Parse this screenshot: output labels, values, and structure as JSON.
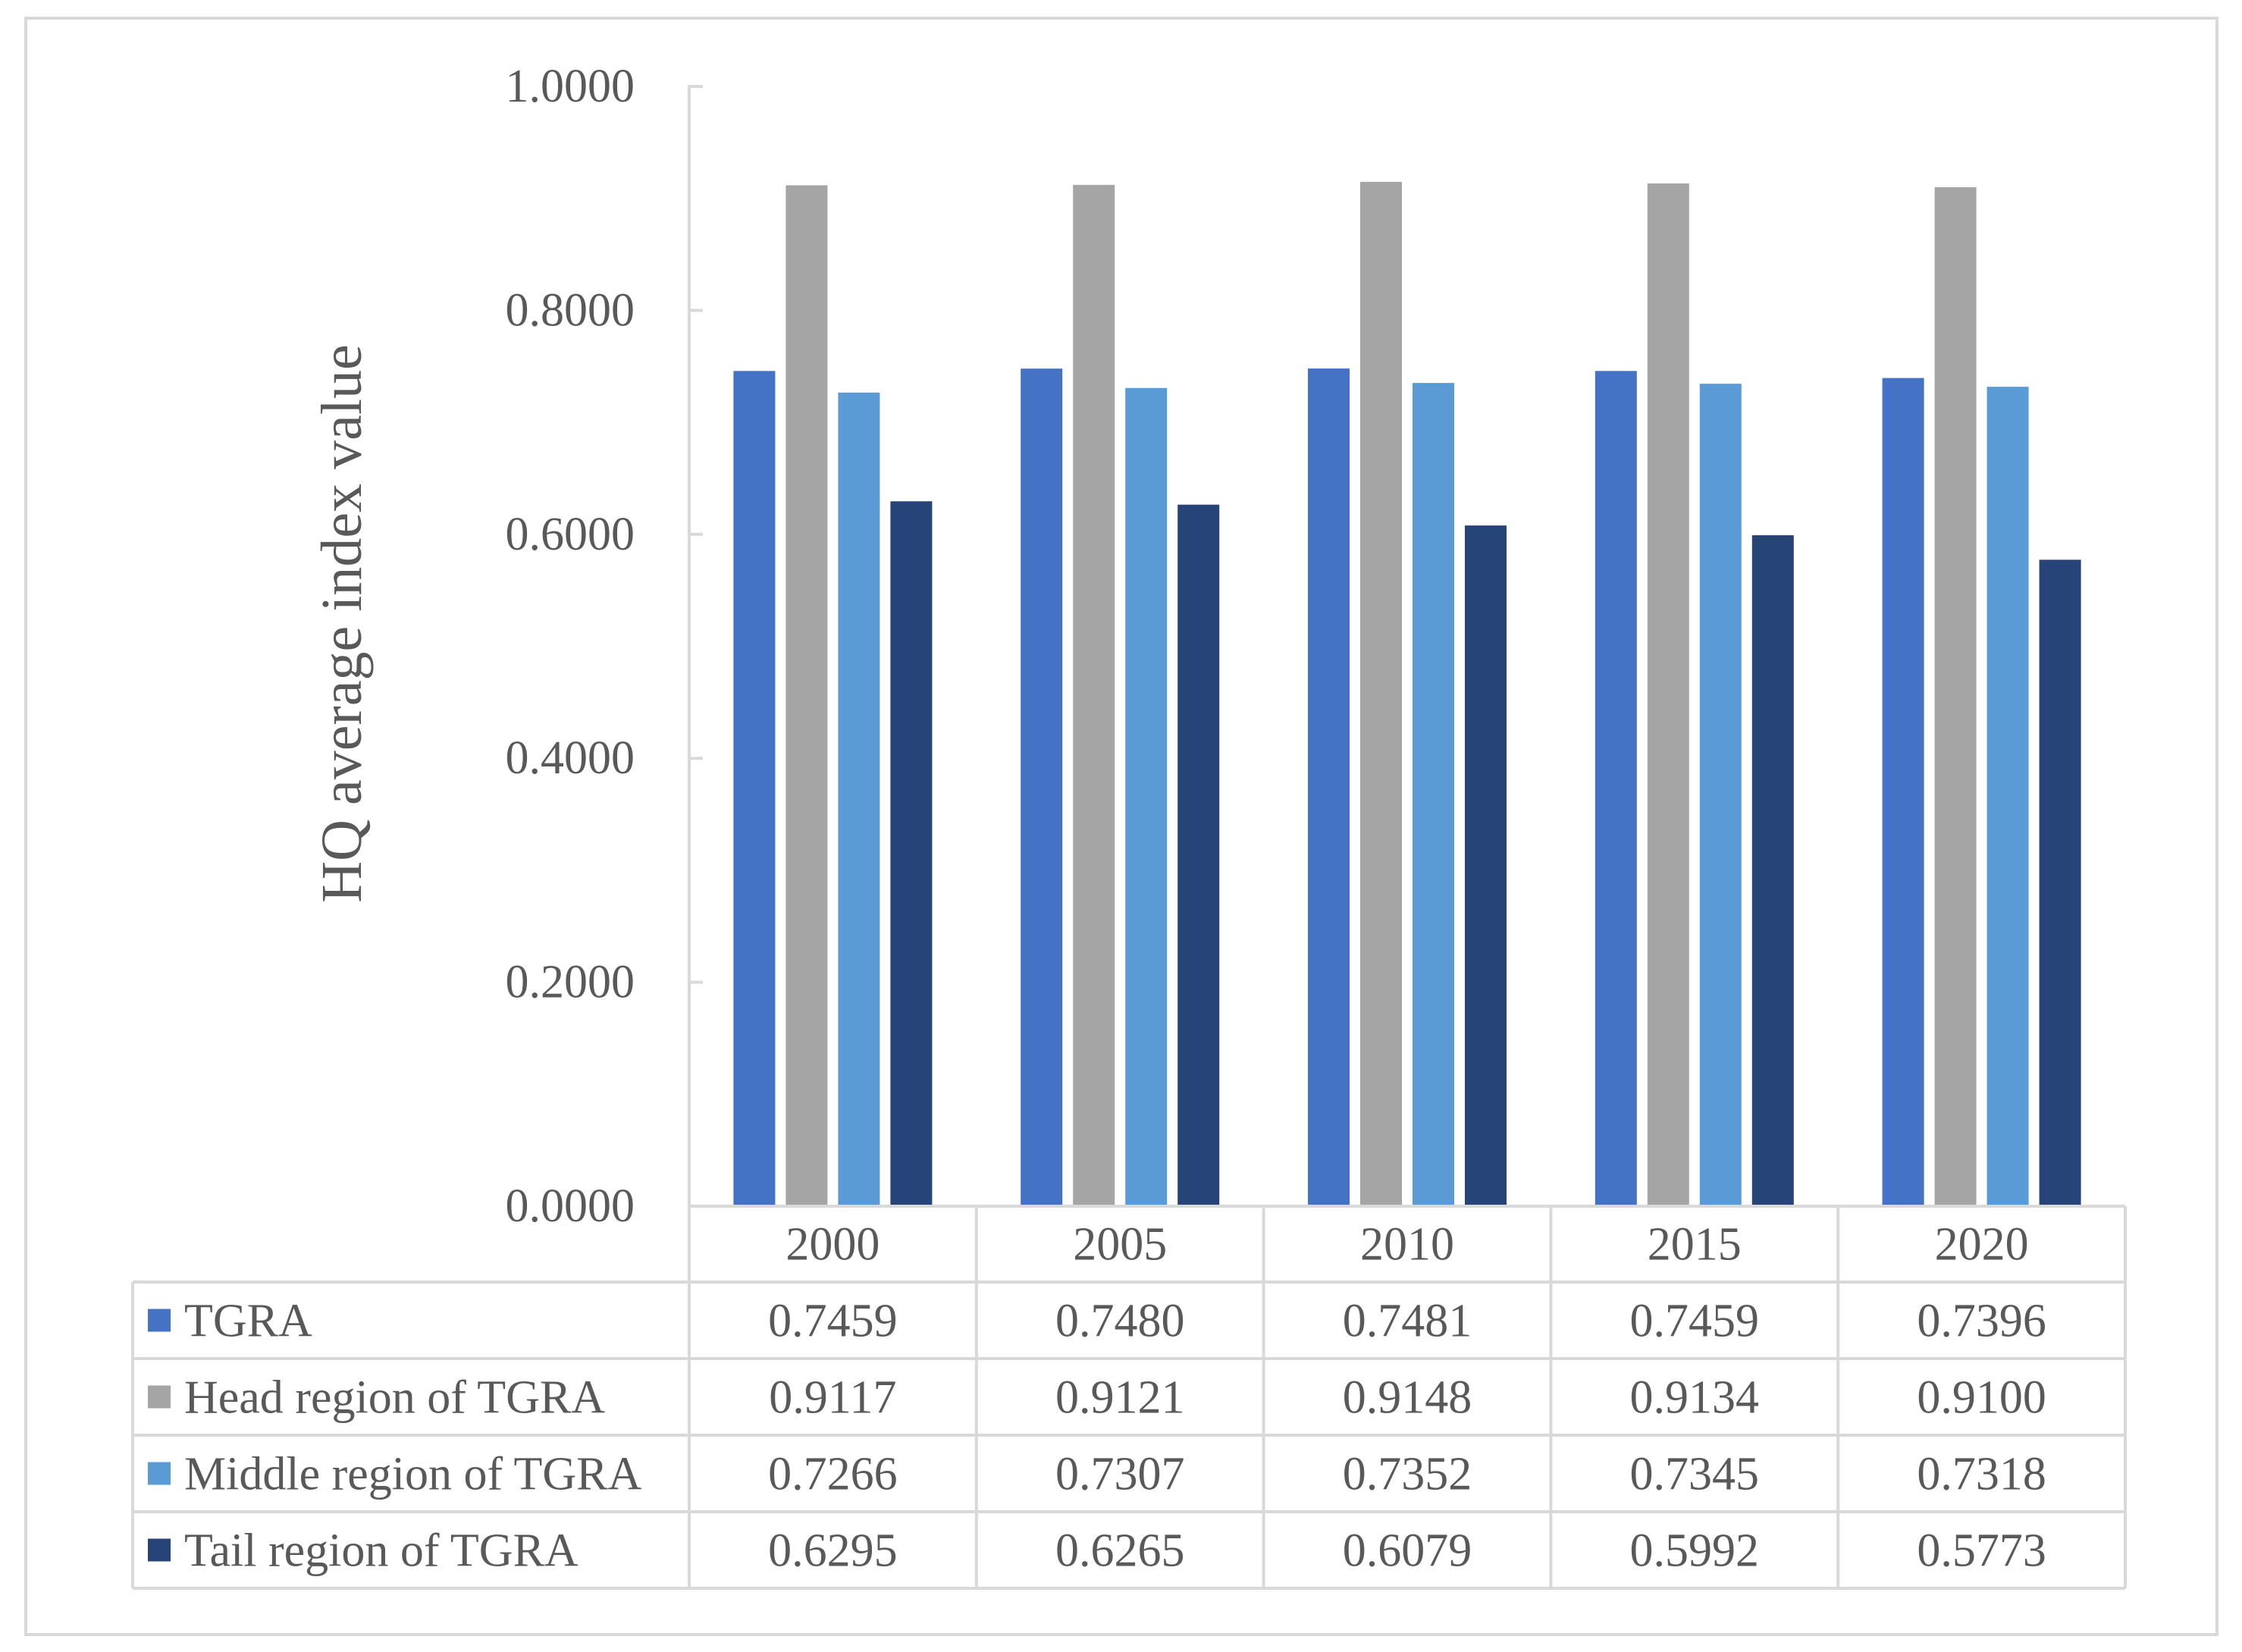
{
  "chart_data": {
    "type": "bar",
    "title": "",
    "xlabel": "",
    "ylabel": "HQ average index value",
    "ylim": [
      0,
      1.0
    ],
    "yticks": [
      "0.0000",
      "0.2000",
      "0.4000",
      "0.6000",
      "0.8000",
      "1.0000"
    ],
    "categories": [
      "2000",
      "2005",
      "2010",
      "2015",
      "2020"
    ],
    "series": [
      {
        "name": "TGRA",
        "color": "#4472C4",
        "values": [
          0.7459,
          0.748,
          0.7481,
          0.7459,
          0.7396
        ],
        "labels": [
          "0.7459",
          "0.7480",
          "0.7481",
          "0.7459",
          "0.7396"
        ]
      },
      {
        "name": "Head region of TGRA",
        "color": "#A5A5A5",
        "values": [
          0.9117,
          0.9121,
          0.9148,
          0.9134,
          0.91
        ],
        "labels": [
          "0.9117",
          "0.9121",
          "0.9148",
          "0.9134",
          "0.9100"
        ]
      },
      {
        "name": "Middle region of TGRA",
        "color": "#5B9BD5",
        "values": [
          0.7266,
          0.7307,
          0.7352,
          0.7345,
          0.7318
        ],
        "labels": [
          "0.7266",
          "0.7307",
          "0.7352",
          "0.7345",
          "0.7318"
        ]
      },
      {
        "name": "Tail region of TGRA",
        "color": "#264478",
        "values": [
          0.6295,
          0.6265,
          0.6079,
          0.5992,
          0.5773
        ],
        "labels": [
          "0.6295",
          "0.6265",
          "0.6079",
          "0.5992",
          "0.5773"
        ]
      }
    ],
    "data_table": true,
    "gridlines": false,
    "axis_color": "#d9d9d9",
    "text_color": "#595959"
  }
}
